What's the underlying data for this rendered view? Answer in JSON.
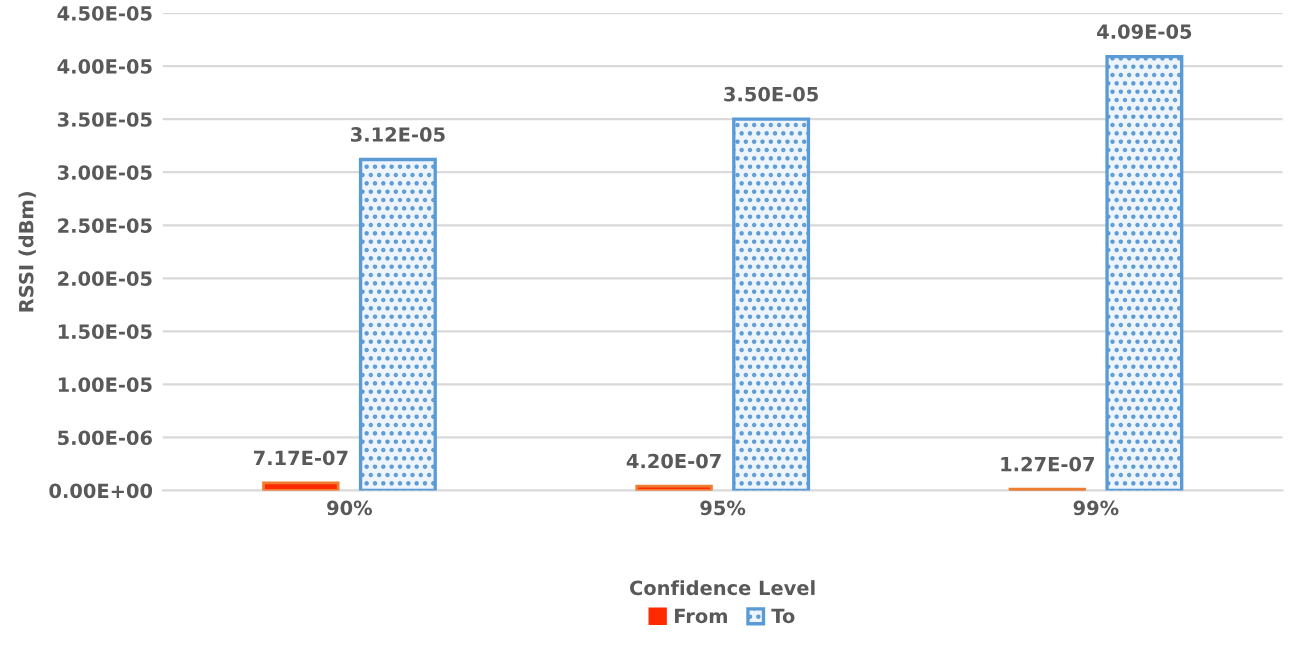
{
  "chart_data": {
    "type": "bar",
    "xlabel": "Confidence Level",
    "ylabel": "RSSI (dBm)",
    "categories": [
      "90%",
      "95%",
      "99%"
    ],
    "series": [
      {
        "name": "From",
        "color": "#ff2a00",
        "values": [
          7.17e-07,
          4.2e-07,
          1.27e-07
        ],
        "value_labels": [
          "7.17E-07",
          "4.20E-07",
          "1.27E-07"
        ]
      },
      {
        "name": "To",
        "color": "#5b9bd5",
        "values": [
          3.12e-05,
          3.5e-05,
          4.09e-05
        ],
        "value_labels": [
          "3.12E-05",
          "3.50E-05",
          "4.09E-05"
        ]
      }
    ],
    "ylim": [
      0,
      4.5e-05
    ],
    "yticks": [
      {
        "value": 0,
        "label": "0.00E+00"
      },
      {
        "value": 5e-06,
        "label": "5.00E-06"
      },
      {
        "value": 1e-05,
        "label": "1.00E-05"
      },
      {
        "value": 1.5e-05,
        "label": "1.50E-05"
      },
      {
        "value": 2e-05,
        "label": "2.00E-05"
      },
      {
        "value": 2.5e-05,
        "label": "2.50E-05"
      },
      {
        "value": 3e-05,
        "label": "3.00E-05"
      },
      {
        "value": 3.5e-05,
        "label": "3.50E-05"
      },
      {
        "value": 4e-05,
        "label": "4.00E-05"
      },
      {
        "value": 4.5e-05,
        "label": "4.50E-05"
      }
    ],
    "grid": "y",
    "legend": "bottom"
  }
}
